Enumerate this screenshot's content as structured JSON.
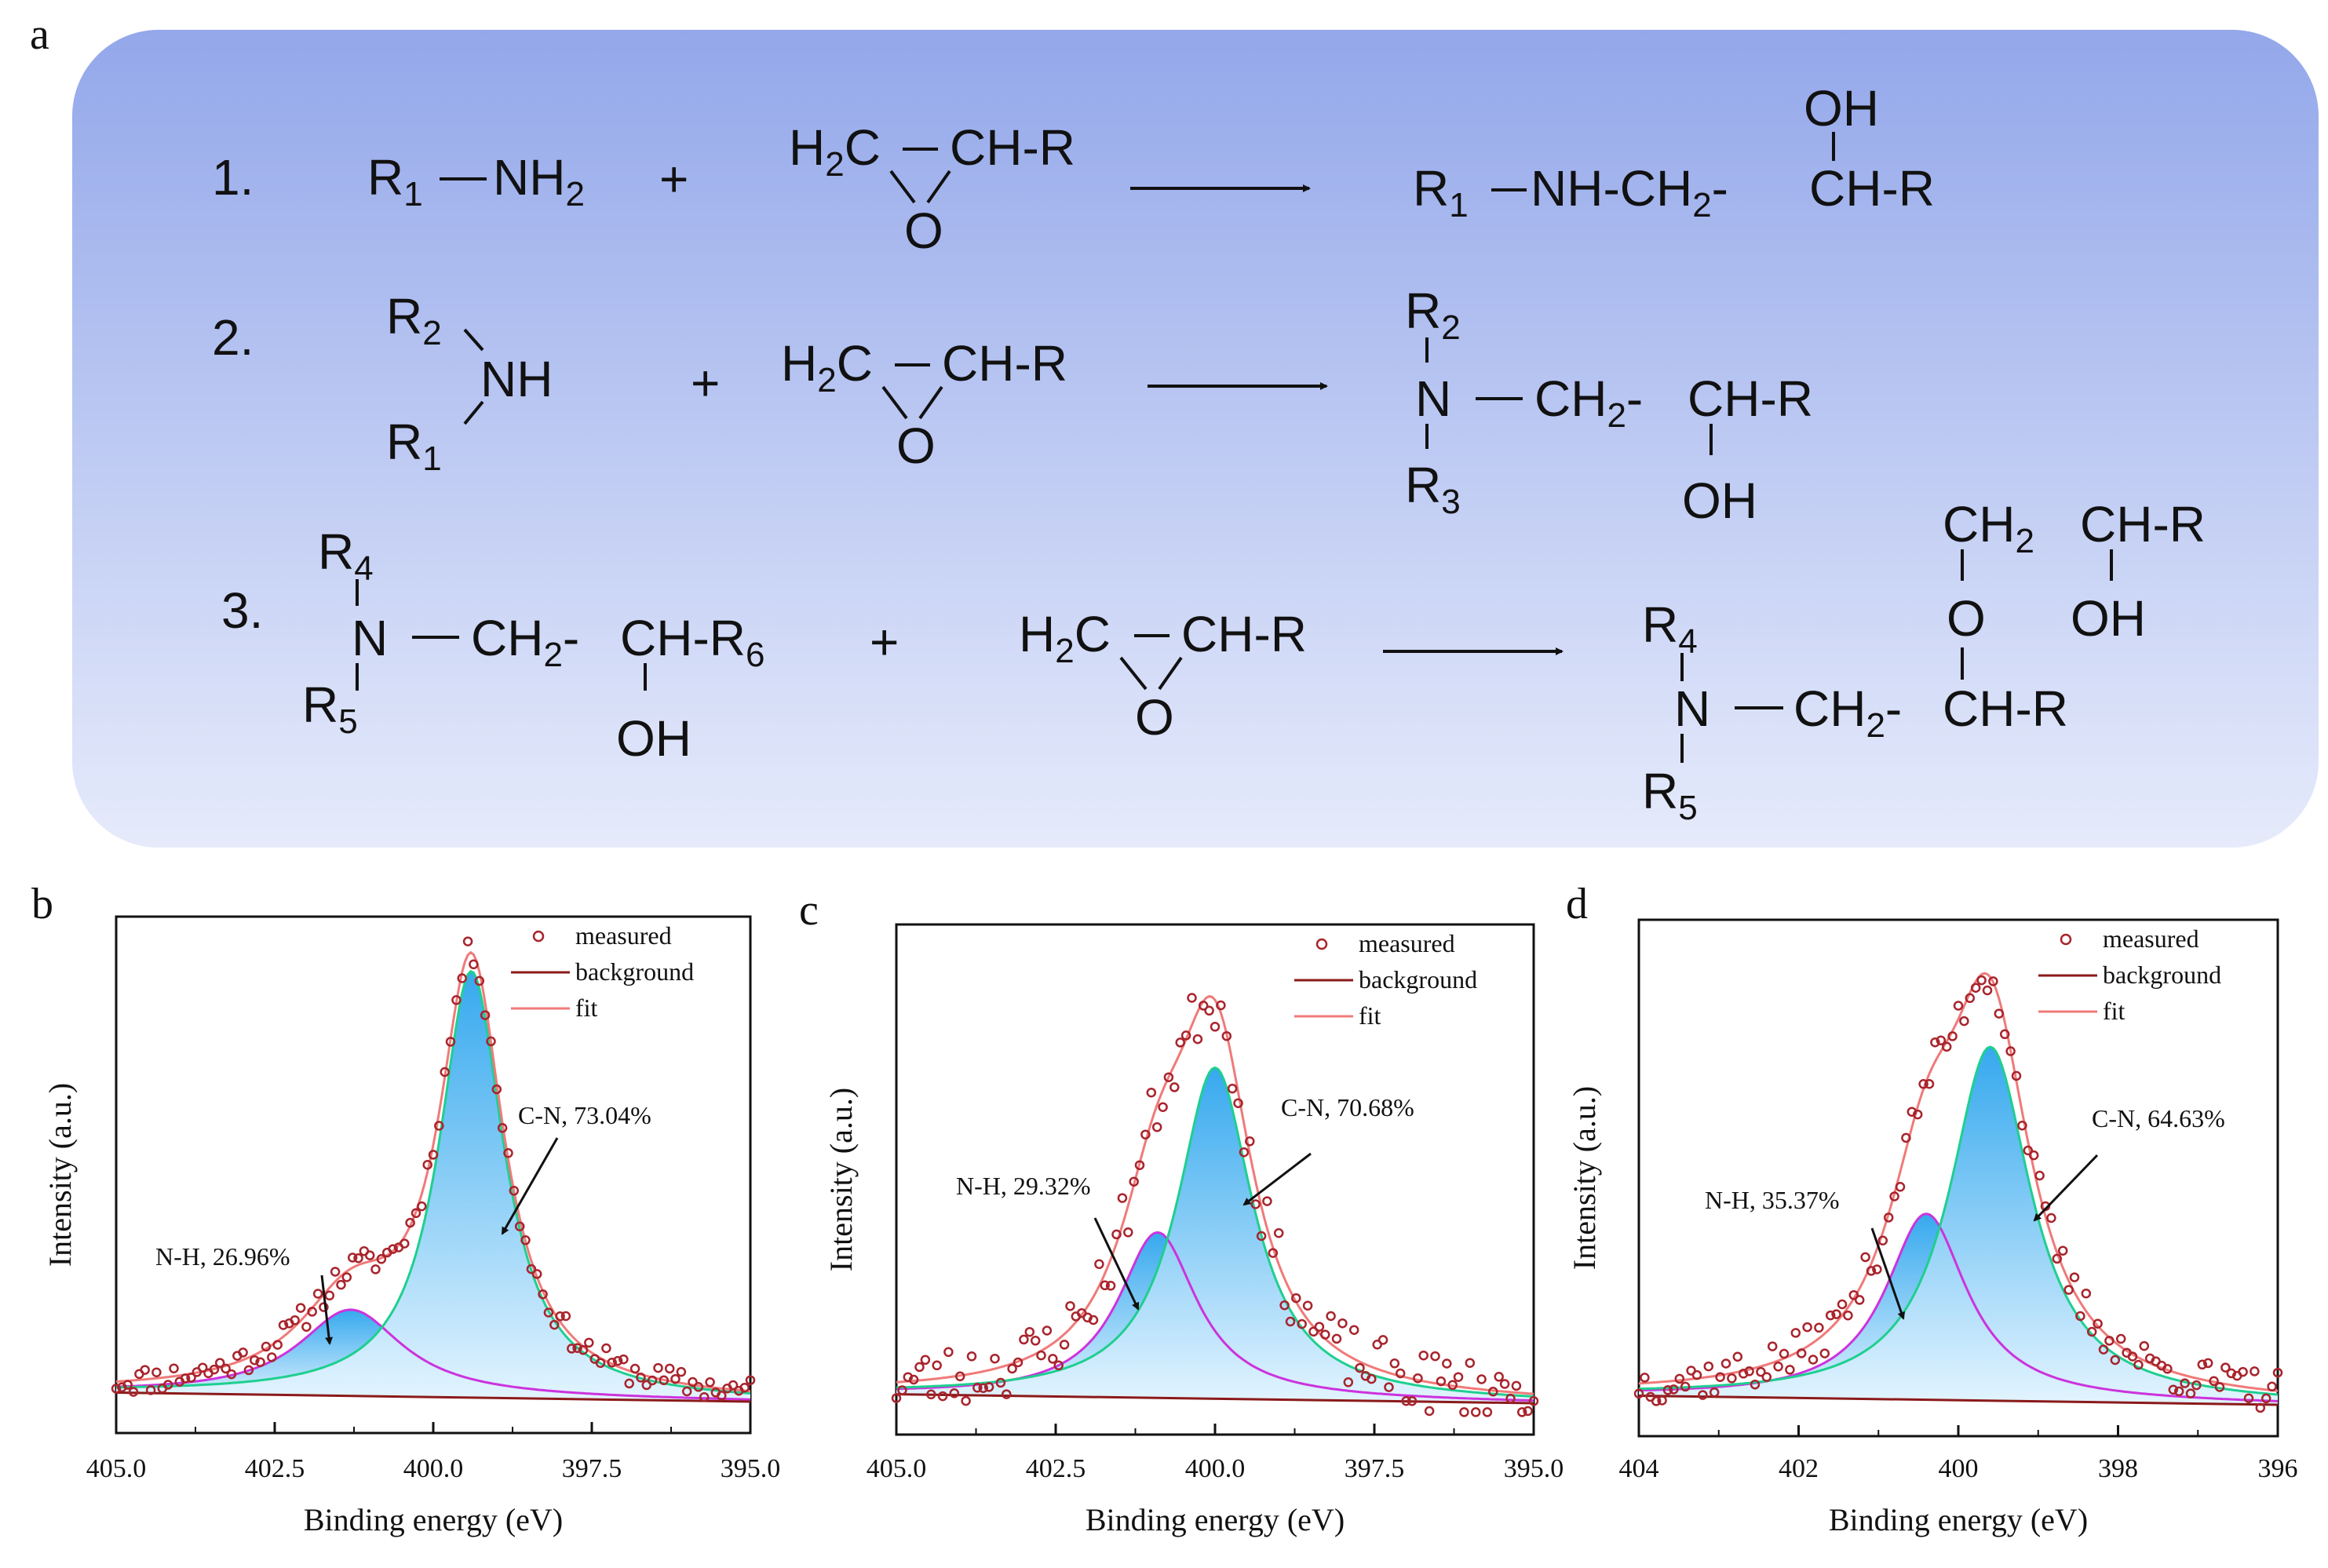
{
  "panel_labels": {
    "a": "a",
    "b": "b",
    "c": "c",
    "d": "d"
  },
  "scheme": {
    "reactions": [
      {
        "number": "1.",
        "reactant_amine": [
          "R1",
          "NH2"
        ],
        "plus": "+",
        "epoxide": [
          "H2C",
          "CH-R",
          "O"
        ],
        "product": [
          "R1",
          "NH-CH2-",
          "CH-R",
          "OH"
        ]
      },
      {
        "number": "2.",
        "reactant_amine": [
          "R2",
          "NH",
          "R1"
        ],
        "plus": "+",
        "epoxide": [
          "H2C",
          "CH-R",
          "O"
        ],
        "product": [
          "R2",
          "N",
          "CH2-",
          "CH-R",
          "R3",
          "OH"
        ]
      },
      {
        "number": "3.",
        "reactant_amine": [
          "R4",
          "N",
          "CH2-",
          "CH-R6",
          "R5",
          "OH"
        ],
        "plus": "+",
        "epoxide": [
          "H2C",
          "CH-R",
          "O"
        ],
        "product": [
          "CH2",
          "CH-R",
          "O",
          "OH",
          "R4",
          "N",
          "CH2-",
          "CH-R",
          "R5"
        ]
      }
    ]
  },
  "chart_data": [
    {
      "panel": "b",
      "type": "line",
      "xlabel": "Binding energy (eV)",
      "ylabel": "Intensity (a.u.)",
      "xlim": [
        405.0,
        395.0
      ],
      "x_reversed": true,
      "xticks": [
        "405.0",
        "402.5",
        "400.0",
        "397.5",
        "395.0"
      ],
      "legend": {
        "position": "top-right",
        "entries": [
          "measured",
          "background",
          "fit"
        ]
      },
      "baseline": {
        "start": 0.02,
        "end": 0.0
      },
      "components": [
        {
          "name": "N-H",
          "center": 401.3,
          "height": 0.19,
          "width": 1.0,
          "area_percent": 26.96,
          "label": "N-H, 26.96%"
        },
        {
          "name": "C-N",
          "center": 399.4,
          "height": 0.94,
          "width": 0.62,
          "area_percent": 73.04,
          "label": "C-N, 73.04%"
        }
      ],
      "noise_amplitude": 0.03,
      "seed": 11
    },
    {
      "panel": "c",
      "type": "line",
      "xlabel": "Binding energy (eV)",
      "ylabel": "Intensity (a.u.)",
      "xlim": [
        405.0,
        395.0
      ],
      "x_reversed": true,
      "xticks": [
        "405.0",
        "402.5",
        "400.0",
        "397.5",
        "395.0"
      ],
      "legend": {
        "position": "top-right",
        "entries": [
          "measured",
          "background",
          "fit"
        ]
      },
      "baseline": {
        "start": 0.02,
        "end": 0.0
      },
      "components": [
        {
          "name": "N-H",
          "center": 400.9,
          "height": 0.37,
          "width": 0.75,
          "area_percent": 29.32,
          "label": "N-H, 29.32%"
        },
        {
          "name": "C-N",
          "center": 400.0,
          "height": 0.74,
          "width": 0.72,
          "area_percent": 70.68,
          "label": "C-N, 70.68%"
        }
      ],
      "noise_amplitude": 0.07,
      "seed": 23
    },
    {
      "panel": "d",
      "type": "line",
      "xlabel": "Binding energy (eV)",
      "ylabel": "Intensity (a.u.)",
      "xlim": [
        404,
        396
      ],
      "x_reversed": true,
      "xticks": [
        "404",
        "402",
        "400",
        "398",
        "396"
      ],
      "legend": {
        "position": "top-right",
        "entries": [
          "measured",
          "background",
          "fit"
        ]
      },
      "baseline": {
        "start": 0.02,
        "end": 0.0
      },
      "components": [
        {
          "name": "N-H",
          "center": 400.4,
          "height": 0.41,
          "width": 0.62,
          "area_percent": 35.37,
          "label": "N-H, 35.37%"
        },
        {
          "name": "C-N",
          "center": 399.6,
          "height": 0.78,
          "width": 0.62,
          "area_percent": 64.63,
          "label": "C-N, 64.63%"
        }
      ],
      "noise_amplitude": 0.045,
      "seed": 37
    }
  ],
  "colors": {
    "scheme_top": "#93a7ea",
    "scheme_bottom": "#e6ebfb",
    "measured": "#a8242c",
    "background": "#8b1a1a",
    "fit": "#f07a7a",
    "nh_line": "#cc33dd",
    "cn_line": "#1fcf8f",
    "fill_top": "#36a9ee",
    "fill_bottom": "#e3f4ff",
    "arrow": "#111111"
  }
}
